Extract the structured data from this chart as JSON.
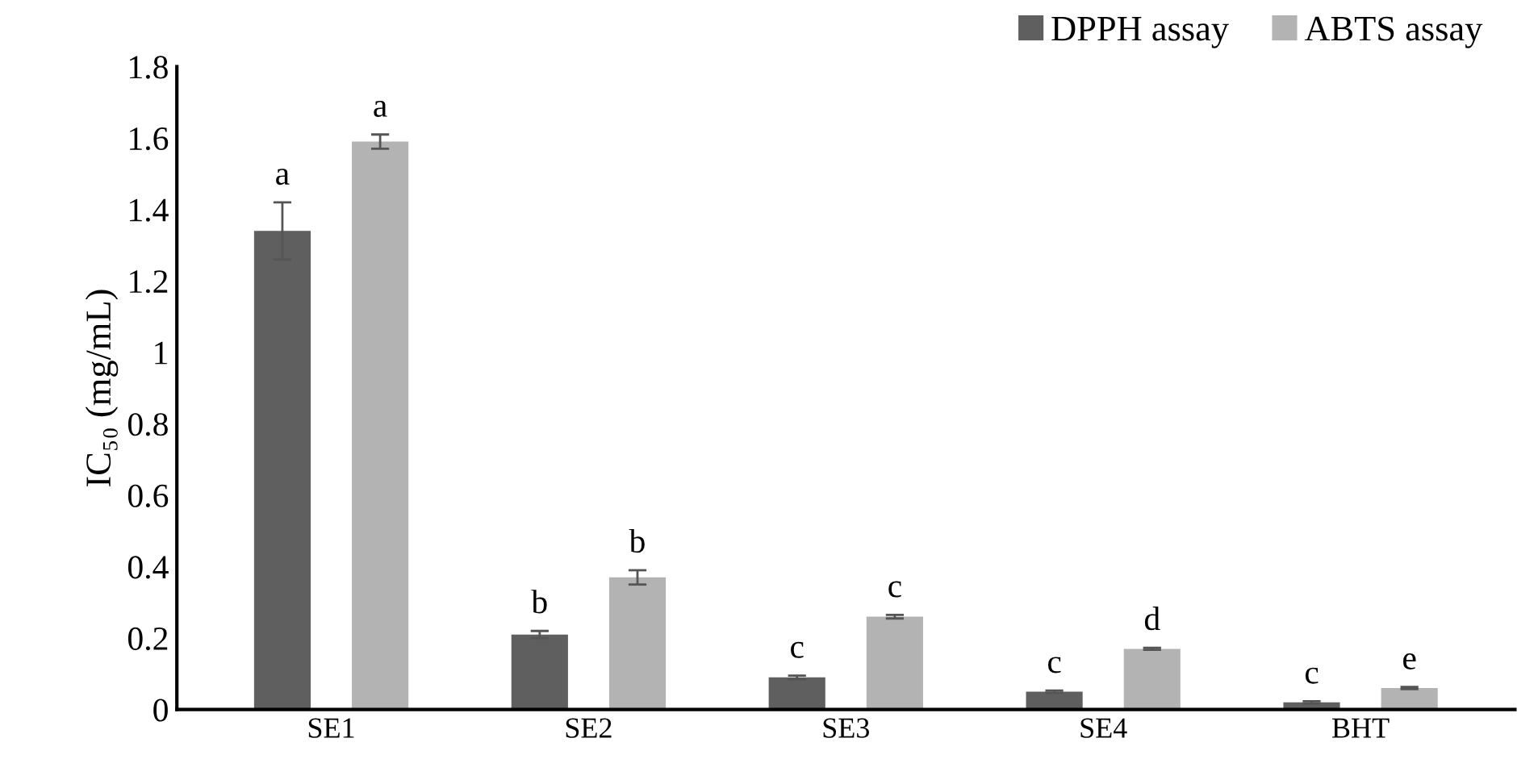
{
  "chart_data": {
    "type": "bar",
    "ylabel": "IC₅₀ (mg/mL)",
    "categories": [
      "SE1",
      "SE2",
      "SE3",
      "SE4",
      "BHT"
    ],
    "series": [
      {
        "name": "DPPH assay",
        "color": "#5f5f5f",
        "values": [
          1.34,
          0.21,
          0.09,
          0.05,
          0.02
        ],
        "errors": [
          0.08,
          0.01,
          0.005,
          0.003,
          0.003
        ],
        "value_labels": [
          "a",
          "b",
          "c",
          "c",
          "c"
        ]
      },
      {
        "name": "ABTS assay",
        "color": "#b3b3b3",
        "values": [
          1.59,
          0.37,
          0.26,
          0.17,
          0.06
        ],
        "errors": [
          0.02,
          0.02,
          0.005,
          0.003,
          0.003
        ],
        "value_labels": [
          "a",
          "b",
          "c",
          "d",
          "e"
        ]
      }
    ],
    "ylim": [
      0,
      1.8
    ],
    "yticks": [
      0,
      0.2,
      0.4,
      0.6,
      0.8,
      1,
      1.2,
      1.4,
      1.6,
      1.8
    ],
    "grid": false,
    "legend": "top right"
  }
}
